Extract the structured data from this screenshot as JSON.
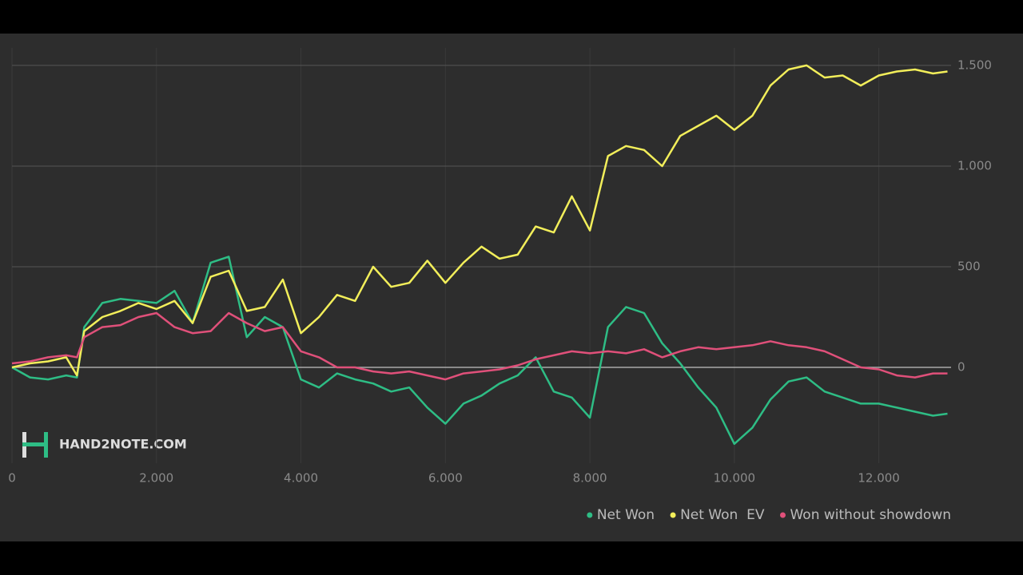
{
  "chart_data": {
    "type": "line",
    "watermark": "HAND2NOTE.COM",
    "x": [
      0,
      250,
      500,
      750,
      900,
      1000,
      1250,
      1500,
      1750,
      2000,
      2250,
      2500,
      2750,
      3000,
      3250,
      3500,
      3750,
      4000,
      4250,
      4500,
      4750,
      5000,
      5250,
      5500,
      5750,
      6000,
      6250,
      6500,
      6750,
      7000,
      7250,
      7500,
      7750,
      8000,
      8250,
      8500,
      8750,
      9000,
      9250,
      9500,
      9750,
      10000,
      10250,
      10500,
      10750,
      11000,
      11250,
      11500,
      11750,
      12000,
      12250,
      12500,
      12750,
      12950
    ],
    "series": [
      {
        "name": "Net Won",
        "color": "#2ebd85",
        "values": [
          0,
          -50,
          -60,
          -40,
          -50,
          200,
          320,
          340,
          330,
          320,
          380,
          220,
          520,
          550,
          150,
          250,
          200,
          -60,
          -100,
          -30,
          -60,
          -80,
          -120,
          -100,
          -200,
          -280,
          -180,
          -140,
          -80,
          -40,
          50,
          -120,
          -150,
          -250,
          200,
          300,
          270,
          120,
          20,
          -100,
          -200,
          -380,
          -300,
          -160,
          -70,
          -50,
          -120,
          -150,
          -180,
          -180,
          -200,
          -220,
          -240,
          -230
        ]
      },
      {
        "name": "Net Won  EV",
        "color": "#f2ee5a",
        "values": [
          0,
          20,
          30,
          50,
          -40,
          180,
          250,
          280,
          320,
          290,
          330,
          220,
          450,
          480,
          280,
          300,
          436,
          170,
          250,
          360,
          330,
          500,
          400,
          420,
          530,
          420,
          520,
          600,
          540,
          560,
          700,
          670,
          850,
          680,
          1050,
          1100,
          1080,
          1000,
          1150,
          1200,
          1250,
          1180,
          1250,
          1400,
          1480,
          1500,
          1440,
          1450,
          1400,
          1450,
          1470,
          1480,
          1460,
          1470
        ]
      },
      {
        "name": "Won without showdown",
        "color": "#e0507a",
        "values": [
          20,
          30,
          50,
          60,
          50,
          150,
          200,
          210,
          250,
          270,
          200,
          170,
          180,
          270,
          220,
          180,
          200,
          80,
          50,
          0,
          0,
          -20,
          -30,
          -20,
          -40,
          -60,
          -30,
          -20,
          -10,
          10,
          40,
          60,
          80,
          70,
          80,
          70,
          90,
          50,
          80,
          100,
          90,
          100,
          110,
          130,
          110,
          100,
          80,
          40,
          0,
          -10,
          -40,
          -50,
          -30,
          -30
        ]
      }
    ],
    "xlim": [
      0,
      13000
    ],
    "xticks": [
      0,
      {
        "value": 2000,
        "label": "2.000"
      },
      {
        "value": 4000,
        "label": "4.000"
      },
      {
        "value": 6000,
        "label": "6.000"
      },
      {
        "value": 8000,
        "label": "8.000"
      },
      {
        "value": 10000,
        "label": "10.000"
      },
      {
        "value": 12000,
        "label": "12.000"
      }
    ],
    "ylim": [
      -476,
      1587
    ],
    "yticks": [
      0,
      500,
      {
        "value": 1000,
        "label": "1.000"
      },
      {
        "value": 1500,
        "label": "1.500"
      }
    ],
    "grid": true,
    "legend": "bottom-right"
  }
}
